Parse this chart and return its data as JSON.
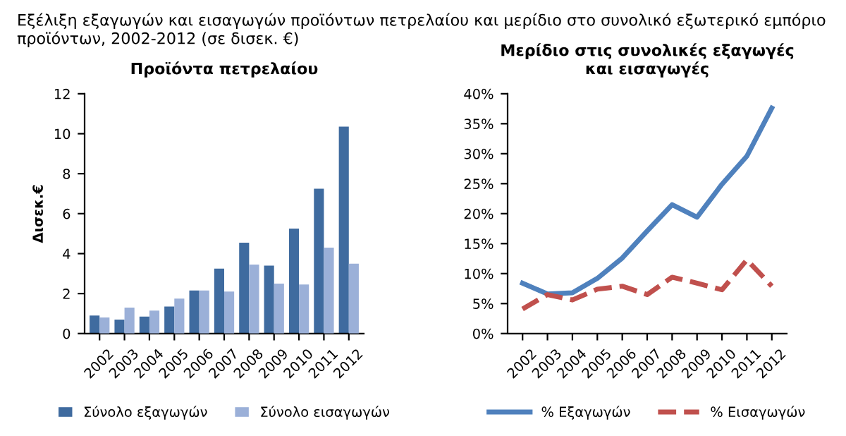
{
  "chart_data": [
    {
      "type": "bar",
      "title": "Προϊόντα πετρελαίου",
      "ylabel": "Δισεκ.€",
      "annotations": [
        "Εξέλιξη εξαγωγών και εισαγωγών προϊόντων πετρελαίου και μερίδιο στο συνολικό εξωτερικό εμπόριο προϊόντων, 2002-2012 (σε δισεκ. €)"
      ],
      "categories": [
        "2002",
        "2003",
        "2004",
        "2005",
        "2006",
        "2007",
        "2008",
        "2009",
        "2010",
        "2011",
        "2012"
      ],
      "series": [
        {
          "name": "Σύνολο εξαγωγών",
          "color": "#3f6b9f",
          "values": [
            0.9,
            0.7,
            0.85,
            1.35,
            2.15,
            3.25,
            4.55,
            3.4,
            5.25,
            7.25,
            10.35
          ]
        },
        {
          "name": "Σύνολο εισαγωγών",
          "color": "#9bb0d8",
          "values": [
            0.8,
            1.3,
            1.15,
            1.75,
            2.15,
            2.1,
            3.45,
            2.5,
            2.45,
            4.3,
            3.5
          ]
        }
      ],
      "ylim": [
        0,
        12
      ],
      "yticks": [
        0,
        2,
        4,
        6,
        8,
        10,
        12
      ],
      "grid": false,
      "legend": "bottom"
    },
    {
      "type": "line",
      "title": "Μερίδιο στις συνολικές εξαγωγές\nκαι εισαγωγές",
      "categories": [
        "2002",
        "2003",
        "2004",
        "2005",
        "2006",
        "2007",
        "2008",
        "2009",
        "2010",
        "2011",
        "2012"
      ],
      "series": [
        {
          "name": "% Εξαγωγών",
          "color": "#4f81bd",
          "line_style": "solid",
          "values": [
            8.4,
            6.6,
            6.8,
            9.2,
            12.6,
            17.1,
            21.5,
            19.4,
            24.9,
            29.6,
            37.6
          ]
        },
        {
          "name": "% Εισαγωγών",
          "color": "#c0504d",
          "line_style": "dashed",
          "values": [
            4.1,
            6.5,
            5.6,
            7.4,
            7.9,
            6.5,
            9.4,
            8.4,
            7.3,
            12.3,
            7.9
          ]
        }
      ],
      "ylim": [
        0,
        40
      ],
      "yticks": [
        {
          "value": 0,
          "label": "0%"
        },
        {
          "value": 5,
          "label": "5%"
        },
        {
          "value": 10,
          "label": "10%"
        },
        {
          "value": 15,
          "label": "15%"
        },
        {
          "value": 20,
          "label": "20%"
        },
        {
          "value": 25,
          "label": "25%"
        },
        {
          "value": 30,
          "label": "30%"
        },
        {
          "value": 35,
          "label": "35%"
        },
        {
          "value": 40,
          "label": "40%"
        }
      ],
      "grid": false,
      "legend": "bottom"
    }
  ]
}
